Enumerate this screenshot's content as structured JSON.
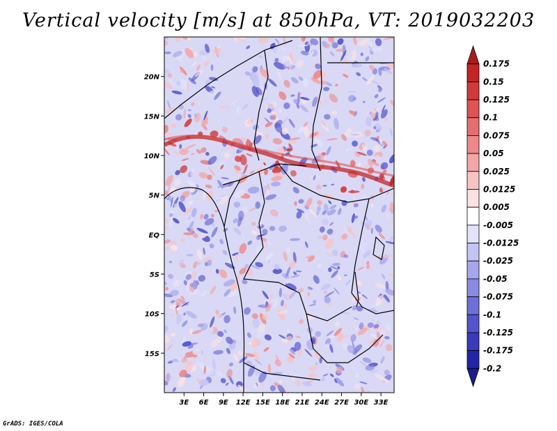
{
  "title": "Vertical velocity [m/s] at 850hPa, VT: 2019032203",
  "credit": "GrADS: IGES/COLA",
  "map": {
    "variable": "Vertical velocity",
    "units": "m/s",
    "level": "850hPa",
    "valid_time": "2019032203",
    "lat_labels": [
      "20N",
      "15N",
      "10N",
      "5N",
      "EQ",
      "5S",
      "10S",
      "15S"
    ],
    "lat_values": [
      20,
      15,
      10,
      5,
      0,
      -5,
      -10,
      -15
    ],
    "lon_labels": [
      "3E",
      "6E",
      "9E",
      "12E",
      "15E",
      "18E",
      "21E",
      "24E",
      "27E",
      "30E",
      "33E"
    ],
    "lon_values": [
      3,
      6,
      9,
      12,
      15,
      18,
      21,
      24,
      27,
      30,
      33
    ],
    "lat_range": [
      -20,
      25
    ],
    "lon_range": [
      0,
      35
    ]
  },
  "colorbar": {
    "levels": [
      "0.175",
      "0.15",
      "0.125",
      "0.1",
      "0.075",
      "0.05",
      "0.025",
      "0.0125",
      "0.005",
      "-0.005",
      "-0.0125",
      "-0.025",
      "-0.05",
      "-0.075",
      "-0.1",
      "-0.125",
      "-0.175",
      "-0.2"
    ],
    "colors": [
      "#a81c1c",
      "#c42424",
      "#d23a3a",
      "#dd5454",
      "#e56f6f",
      "#ec8a8a",
      "#f2a6a6",
      "#f7c4c4",
      "#fbe2e2",
      "#ffffff",
      "#e2e2fb",
      "#c4c4f4",
      "#a6a6ec",
      "#8a8ae3",
      "#6f6fd9",
      "#5454cc",
      "#3a3abb",
      "#2424a6",
      "#1c1c8c"
    ]
  }
}
